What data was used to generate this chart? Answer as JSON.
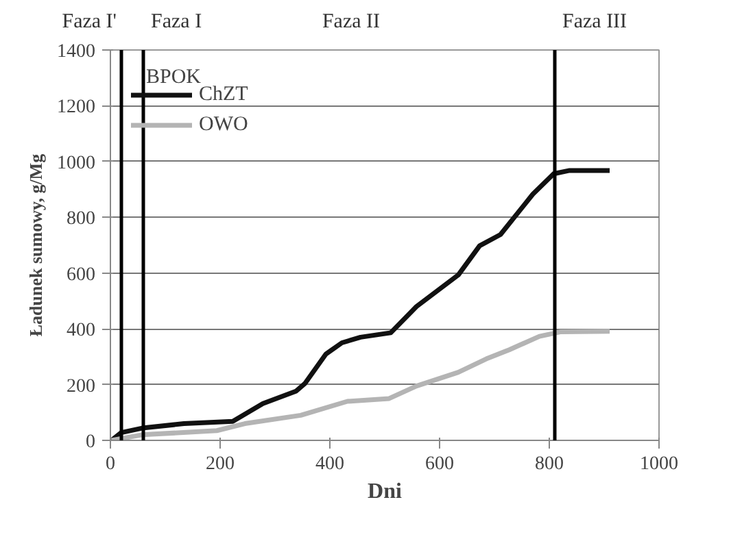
{
  "chart_data": {
    "type": "line",
    "xlabel": "Dni",
    "ylabel": "Ładunek sumowy, g/Mg",
    "xlim": [
      0,
      1000
    ],
    "xticks": [
      0,
      200,
      400,
      600,
      800,
      1000
    ],
    "ylim": [
      0,
      1400
    ],
    "yticks": [
      0,
      200,
      400,
      600,
      800,
      1000,
      1200,
      1400
    ],
    "grid": "y",
    "legend": "top left",
    "line_style": "solid",
    "marker": "none",
    "series": [
      {
        "name": "ChZT",
        "color": "#111111",
        "x": [
          2,
          20,
          58,
          134,
          223,
          278,
          338,
          355,
          393,
          422,
          456,
          511,
          558,
          634,
          673,
          711,
          770,
          808,
          837,
          910
        ],
        "values": [
          0,
          28,
          44,
          60,
          68,
          132,
          176,
          205,
          310,
          350,
          370,
          386,
          480,
          593,
          698,
          738,
          883,
          956,
          968,
          968
        ]
      },
      {
        "name": "OWO",
        "color": "#b4b4b4",
        "x": [
          2,
          58,
          194,
          245,
          347,
          432,
          508,
          558,
          634,
          685,
          727,
          782,
          820,
          910
        ],
        "values": [
          0,
          20,
          35,
          60,
          90,
          140,
          150,
          195,
          244,
          292,
          325,
          373,
          389,
          391
        ]
      }
    ],
    "ref_lines": [
      {
        "axis": "x",
        "value": 20,
        "color": "#000000",
        "label": "Faza I'"
      },
      {
        "axis": "x",
        "value": 60,
        "color": "#000000",
        "label": "Faza I"
      },
      {
        "axis": "x",
        "value": 810,
        "color": "#000000",
        "label": "Faza III"
      }
    ],
    "annotations": [
      "Faza II",
      "BPOK"
    ]
  }
}
